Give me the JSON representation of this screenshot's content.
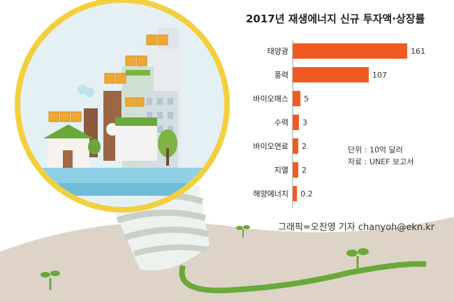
{
  "chart_data": {
    "type": "bar",
    "orientation": "horizontal",
    "title": "2017년 재생에너지 신규 투자액·상장률",
    "categories": [
      "태양광",
      "풍력",
      "바이오매스",
      "수력",
      "바이오연료",
      "지열",
      "해양에너지"
    ],
    "values": [
      161,
      107,
      5,
      3,
      2,
      2,
      0.2
    ],
    "value_labels": [
      "161",
      "107",
      "5",
      "3",
      "2",
      "2",
      "0.2"
    ],
    "xlim": [
      0,
      161
    ],
    "grid": false,
    "bar_color": "#f05a22"
  },
  "notes": {
    "unit": "단위 : 10억 달러",
    "source": "자료 : UNEF 보고서"
  },
  "credit": "그래픽=오찬영 기자 chanyoh@ekn.kr",
  "colors": {
    "bulb_rim": "#f3cf3e",
    "grass": "#6aa83a",
    "ground": "#ddd4c7",
    "sky": "#e4f0f4"
  }
}
